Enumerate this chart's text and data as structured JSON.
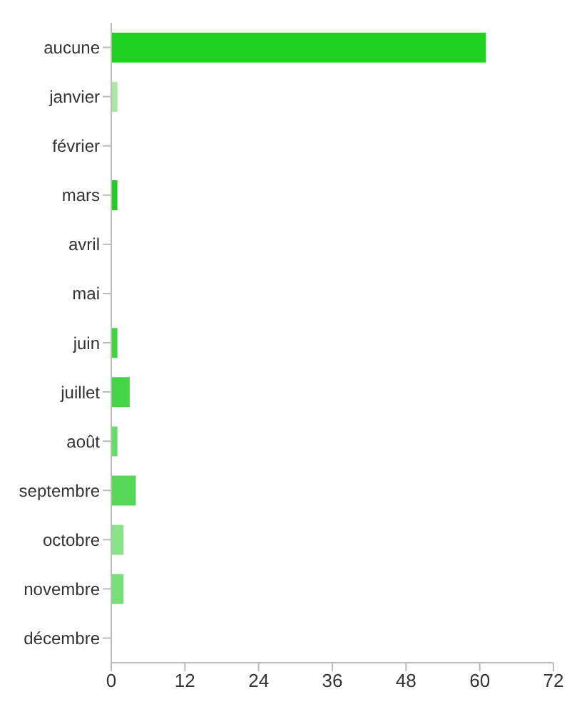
{
  "chart_data": {
    "type": "bar",
    "orientation": "horizontal",
    "categories": [
      "aucune",
      "janvier",
      "février",
      "mars",
      "avril",
      "mai",
      "juin",
      "juillet",
      "août",
      "septembre",
      "octobre",
      "novembre",
      "décembre"
    ],
    "values": [
      61,
      1,
      0,
      1,
      0,
      0,
      1,
      3,
      1,
      4,
      2,
      2,
      0
    ],
    "colors": [
      "#1fd11f",
      "#a8e8a0",
      "#a8e8a0",
      "#22cc22",
      "#a8e8a0",
      "#a8e8a0",
      "#3fd63f",
      "#44d444",
      "#66dd66",
      "#55d855",
      "#88e288",
      "#77df77",
      "#a8e8a0"
    ],
    "xlim": [
      0,
      72
    ],
    "xticks": [
      0,
      12,
      24,
      36,
      48,
      60,
      72
    ]
  }
}
